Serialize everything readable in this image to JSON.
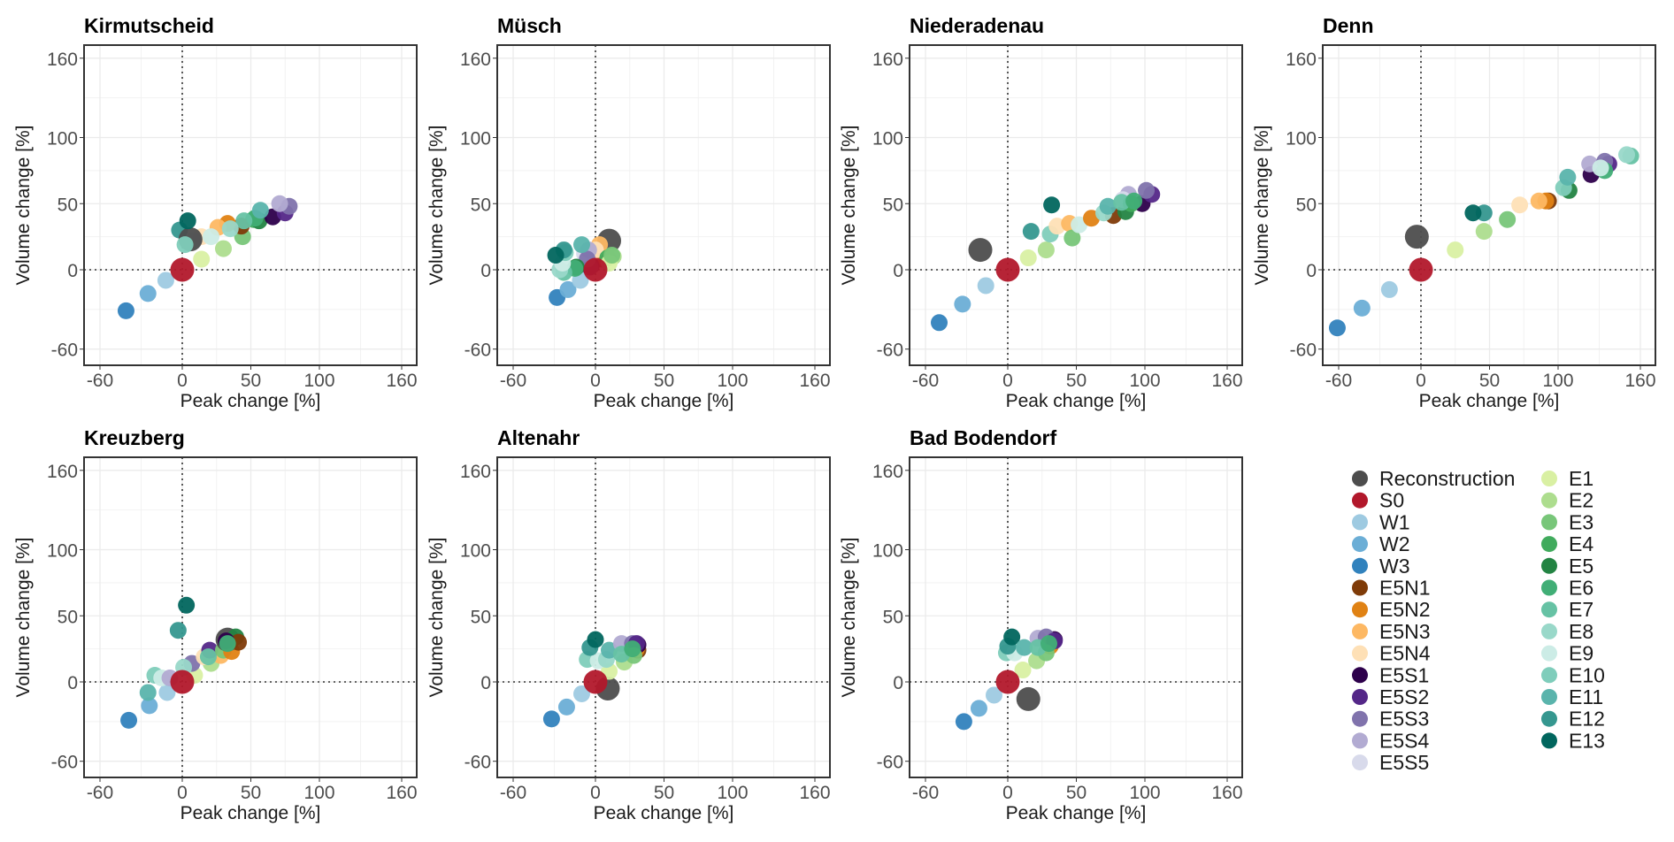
{
  "chart_data": {
    "type": "scatter",
    "xlabel": "Peak change [%]",
    "ylabel": "Volume change [%]",
    "xlim": [
      -68,
      175
    ],
    "ylim": [
      -70,
      170
    ],
    "xticks": [
      -60,
      0,
      50,
      100,
      160
    ],
    "yticks": [
      -60,
      0,
      50,
      100,
      160
    ],
    "tick_labels": [
      "-60",
      "0",
      "50",
      "100",
      "160"
    ],
    "grid": true,
    "reference_lines": {
      "x": 0,
      "y": 0,
      "style": "dotted"
    },
    "legend": {
      "placement": "bottom-right",
      "columns": 2,
      "entries": [
        {
          "name": "Reconstruction",
          "color": "#4d4d4d"
        },
        {
          "name": "S0",
          "color": "#b2182b"
        },
        {
          "name": "W1",
          "color": "#9ecae1"
        },
        {
          "name": "W2",
          "color": "#6baed6"
        },
        {
          "name": "W3",
          "color": "#3182bd"
        },
        {
          "name": "E5N1",
          "color": "#7f3b08"
        },
        {
          "name": "E5N2",
          "color": "#e08214"
        },
        {
          "name": "E5N3",
          "color": "#fdb863"
        },
        {
          "name": "E5N4",
          "color": "#fee0b6"
        },
        {
          "name": "E5S1",
          "color": "#2d004b"
        },
        {
          "name": "E5S2",
          "color": "#542788"
        },
        {
          "name": "E5S3",
          "color": "#8073ac"
        },
        {
          "name": "E5S4",
          "color": "#b2abd2"
        },
        {
          "name": "E5S5",
          "color": "#d8daeb"
        },
        {
          "name": "E1",
          "color": "#d9f0a3"
        },
        {
          "name": "E2",
          "color": "#addd8e"
        },
        {
          "name": "E3",
          "color": "#78c679"
        },
        {
          "name": "E4",
          "color": "#41ab5d"
        },
        {
          "name": "E5",
          "color": "#238443"
        },
        {
          "name": "E6",
          "color": "#41ae76"
        },
        {
          "name": "E7",
          "color": "#66c2a4"
        },
        {
          "name": "E8",
          "color": "#99d8c9"
        },
        {
          "name": "E9",
          "color": "#ccece6"
        },
        {
          "name": "E10",
          "color": "#7fcdbb"
        },
        {
          "name": "E11",
          "color": "#5ab4ac"
        },
        {
          "name": "E12",
          "color": "#35978f"
        },
        {
          "name": "E13",
          "color": "#01665e"
        }
      ]
    },
    "panels": [
      {
        "title": "Kirmutscheid",
        "points": [
          {
            "s": "W3",
            "x": -41,
            "y": -31
          },
          {
            "s": "W2",
            "x": -25,
            "y": -18
          },
          {
            "s": "W1",
            "x": -12,
            "y": -8
          },
          {
            "s": "E1",
            "x": 14,
            "y": 8
          },
          {
            "s": "E2",
            "x": 30,
            "y": 16
          },
          {
            "s": "E3",
            "x": 44,
            "y": 25
          },
          {
            "s": "E4",
            "x": 52,
            "y": 38
          },
          {
            "s": "E5",
            "x": 56,
            "y": 37
          },
          {
            "s": "E5N1",
            "x": 43,
            "y": 33
          },
          {
            "s": "E5N2",
            "x": 33,
            "y": 35
          },
          {
            "s": "E5N3",
            "x": 26,
            "y": 32
          },
          {
            "s": "E5N4",
            "x": 14,
            "y": 25
          },
          {
            "s": "E5S1",
            "x": 66,
            "y": 40
          },
          {
            "s": "E5S2",
            "x": 75,
            "y": 43
          },
          {
            "s": "E5S3",
            "x": 78,
            "y": 48
          },
          {
            "s": "E5S4",
            "x": 71,
            "y": 50
          },
          {
            "s": "E5S5",
            "x": 8,
            "y": 22
          },
          {
            "s": "E6",
            "x": 53,
            "y": 39
          },
          {
            "s": "E7",
            "x": 45,
            "y": 37
          },
          {
            "s": "E8",
            "x": 35,
            "y": 31
          },
          {
            "s": "E9",
            "x": 21,
            "y": 25
          },
          {
            "s": "E11",
            "x": 57,
            "y": 45
          },
          {
            "s": "E12",
            "x": -2,
            "y": 30
          },
          {
            "s": "Reconstruction",
            "x": 6,
            "y": 23
          },
          {
            "s": "E13",
            "x": 4,
            "y": 37
          },
          {
            "s": "E10",
            "x": 2,
            "y": 19
          },
          {
            "s": "S0",
            "x": 0,
            "y": 0
          }
        ]
      },
      {
        "title": "Müsch",
        "points": [
          {
            "s": "W3",
            "x": -28,
            "y": -21
          },
          {
            "s": "W2",
            "x": -20,
            "y": -15
          },
          {
            "s": "W1",
            "x": -11,
            "y": -8
          },
          {
            "s": "Reconstruction",
            "x": 10,
            "y": 22
          },
          {
            "s": "E5N1",
            "x": 5,
            "y": 8
          },
          {
            "s": "E5N2",
            "x": 4,
            "y": 10
          },
          {
            "s": "E5N3",
            "x": 3,
            "y": 19
          },
          {
            "s": "E5N4",
            "x": 0,
            "y": 15
          },
          {
            "s": "E5S1",
            "x": -3,
            "y": 3
          },
          {
            "s": "E5S2",
            "x": -4,
            "y": 2
          },
          {
            "s": "E5S5",
            "x": -8,
            "y": 12
          },
          {
            "s": "E5S4",
            "x": -5,
            "y": 15
          },
          {
            "s": "E5S3",
            "x": -6,
            "y": 8
          },
          {
            "s": "E4",
            "x": 9,
            "y": 9
          },
          {
            "s": "E5",
            "x": -14,
            "y": 2
          },
          {
            "s": "E6",
            "x": -15,
            "y": 1
          },
          {
            "s": "E7",
            "x": -23,
            "y": -2
          },
          {
            "s": "E8",
            "x": -26,
            "y": 0
          },
          {
            "s": "E9",
            "x": -24,
            "y": 5
          },
          {
            "s": "E10",
            "x": -22,
            "y": 13
          },
          {
            "s": "E11",
            "x": -10,
            "y": 19
          },
          {
            "s": "E12",
            "x": -23,
            "y": 15
          },
          {
            "s": "E13",
            "x": -29,
            "y": 11
          },
          {
            "s": "E2",
            "x": 13,
            "y": 10
          },
          {
            "s": "E1",
            "x": 10,
            "y": 5
          },
          {
            "s": "E3",
            "x": 12,
            "y": 11
          },
          {
            "s": "S0",
            "x": 0,
            "y": 0
          }
        ]
      },
      {
        "title": "Niederadenau",
        "points": [
          {
            "s": "Reconstruction",
            "x": -20,
            "y": 15
          },
          {
            "s": "W3",
            "x": -50,
            "y": -40
          },
          {
            "s": "W2",
            "x": -33,
            "y": -26
          },
          {
            "s": "W1",
            "x": -16,
            "y": -12
          },
          {
            "s": "E1",
            "x": 15,
            "y": 9
          },
          {
            "s": "E2",
            "x": 28,
            "y": 15
          },
          {
            "s": "E12",
            "x": 17,
            "y": 29
          },
          {
            "s": "E13",
            "x": 32,
            "y": 49
          },
          {
            "s": "E10",
            "x": 31,
            "y": 27
          },
          {
            "s": "E5N4",
            "x": 36,
            "y": 33
          },
          {
            "s": "E5N3",
            "x": 45,
            "y": 35
          },
          {
            "s": "E3",
            "x": 47,
            "y": 24
          },
          {
            "s": "E9",
            "x": 52,
            "y": 34
          },
          {
            "s": "E5N2",
            "x": 61,
            "y": 39
          },
          {
            "s": "E5N1",
            "x": 77,
            "y": 41
          },
          {
            "s": "E8",
            "x": 70,
            "y": 43
          },
          {
            "s": "E11",
            "x": 73,
            "y": 48
          },
          {
            "s": "E5",
            "x": 86,
            "y": 44
          },
          {
            "s": "E5S1",
            "x": 98,
            "y": 50
          },
          {
            "s": "E5S4",
            "x": 88,
            "y": 57
          },
          {
            "s": "E5S5",
            "x": 84,
            "y": 53
          },
          {
            "s": "E5S2",
            "x": 105,
            "y": 57
          },
          {
            "s": "E5S3",
            "x": 101,
            "y": 60
          },
          {
            "s": "E4",
            "x": 90,
            "y": 50
          },
          {
            "s": "E7",
            "x": 83,
            "y": 51
          },
          {
            "s": "E6",
            "x": 92,
            "y": 52
          },
          {
            "s": "S0",
            "x": 0,
            "y": 0
          }
        ]
      },
      {
        "title": "Denn",
        "points": [
          {
            "s": "Reconstruction",
            "x": -3,
            "y": 25
          },
          {
            "s": "W3",
            "x": -61,
            "y": -44
          },
          {
            "s": "W2",
            "x": -43,
            "y": -29
          },
          {
            "s": "W1",
            "x": -23,
            "y": -15
          },
          {
            "s": "E1",
            "x": 25,
            "y": 15
          },
          {
            "s": "E2",
            "x": 46,
            "y": 29
          },
          {
            "s": "E12",
            "x": 46,
            "y": 43
          },
          {
            "s": "E13",
            "x": 38,
            "y": 43
          },
          {
            "s": "E3",
            "x": 63,
            "y": 38
          },
          {
            "s": "E5N4",
            "x": 72,
            "y": 49
          },
          {
            "s": "E5N1",
            "x": 93,
            "y": 52
          },
          {
            "s": "E5N2",
            "x": 91,
            "y": 52
          },
          {
            "s": "E5N3",
            "x": 86,
            "y": 52
          },
          {
            "s": "E5",
            "x": 108,
            "y": 60
          },
          {
            "s": "E10",
            "x": 104,
            "y": 62
          },
          {
            "s": "E11",
            "x": 107,
            "y": 70
          },
          {
            "s": "E5S1",
            "x": 124,
            "y": 72
          },
          {
            "s": "E5S4",
            "x": 123,
            "y": 80
          },
          {
            "s": "E5S2",
            "x": 137,
            "y": 80
          },
          {
            "s": "E5S3",
            "x": 134,
            "y": 82
          },
          {
            "s": "E6",
            "x": 134,
            "y": 75
          },
          {
            "s": "E9",
            "x": 131,
            "y": 77
          },
          {
            "s": "E7",
            "x": 153,
            "y": 86
          },
          {
            "s": "E8",
            "x": 150,
            "y": 87
          },
          {
            "s": "S0",
            "x": 0,
            "y": 0
          }
        ]
      },
      {
        "title": "Kreuzberg",
        "points": [
          {
            "s": "W3",
            "x": -39,
            "y": -29
          },
          {
            "s": "W2",
            "x": -24,
            "y": -18
          },
          {
            "s": "E11",
            "x": -25,
            "y": -8
          },
          {
            "s": "W1",
            "x": -11,
            "y": -8
          },
          {
            "s": "E10",
            "x": -20,
            "y": 5
          },
          {
            "s": "E9",
            "x": -15,
            "y": 3
          },
          {
            "s": "E5S4",
            "x": -9,
            "y": 3
          },
          {
            "s": "E12",
            "x": -3,
            "y": 39
          },
          {
            "s": "E13",
            "x": 3,
            "y": 58
          },
          {
            "s": "E1",
            "x": 9,
            "y": 5
          },
          {
            "s": "E5S3",
            "x": 7,
            "y": 14
          },
          {
            "s": "E8",
            "x": 1,
            "y": 11
          },
          {
            "s": "E2",
            "x": 21,
            "y": 14
          },
          {
            "s": "E5N4",
            "x": 16,
            "y": 19
          },
          {
            "s": "E5N3",
            "x": 28,
            "y": 20
          },
          {
            "s": "E5S2",
            "x": 20,
            "y": 24
          },
          {
            "s": "E7",
            "x": 19,
            "y": 19
          },
          {
            "s": "E3",
            "x": 30,
            "y": 24
          },
          {
            "s": "E5N2",
            "x": 36,
            "y": 23
          },
          {
            "s": "Reconstruction",
            "x": 33,
            "y": 32
          },
          {
            "s": "E5",
            "x": 39,
            "y": 34
          },
          {
            "s": "E5N1",
            "x": 41,
            "y": 30
          },
          {
            "s": "E5S1",
            "x": 32,
            "y": 31
          },
          {
            "s": "E6",
            "x": 33,
            "y": 29
          },
          {
            "s": "S0",
            "x": 0,
            "y": 0
          }
        ]
      },
      {
        "title": "Altenahr",
        "points": [
          {
            "s": "W3",
            "x": -32,
            "y": -28
          },
          {
            "s": "W2",
            "x": -21,
            "y": -19
          },
          {
            "s": "W1",
            "x": -10,
            "y": -9
          },
          {
            "s": "Reconstruction",
            "x": 9,
            "y": -5
          },
          {
            "s": "E1",
            "x": 10,
            "y": 8
          },
          {
            "s": "E2",
            "x": 21,
            "y": 15
          },
          {
            "s": "E10",
            "x": -6,
            "y": 17
          },
          {
            "s": "E9",
            "x": 2,
            "y": 16
          },
          {
            "s": "E8",
            "x": 8,
            "y": 17
          },
          {
            "s": "E12",
            "x": -4,
            "y": 26
          },
          {
            "s": "E13",
            "x": 0,
            "y": 32
          },
          {
            "s": "E11",
            "x": 10,
            "y": 24
          },
          {
            "s": "E5N1",
            "x": 31,
            "y": 24
          },
          {
            "s": "E5N2",
            "x": 30,
            "y": 25
          },
          {
            "s": "E5S1",
            "x": 31,
            "y": 28
          },
          {
            "s": "E5S4",
            "x": 19,
            "y": 29
          },
          {
            "s": "E5S3",
            "x": 27,
            "y": 29
          },
          {
            "s": "E5S2",
            "x": 30,
            "y": 29
          },
          {
            "s": "E3",
            "x": 28,
            "y": 20
          },
          {
            "s": "E7",
            "x": 19,
            "y": 21
          },
          {
            "s": "E6",
            "x": 27,
            "y": 25
          },
          {
            "s": "S0",
            "x": 0,
            "y": 0
          }
        ]
      },
      {
        "title": "Bad Bodendorf",
        "points": [
          {
            "s": "Reconstruction",
            "x": 15,
            "y": -13
          },
          {
            "s": "W3",
            "x": -32,
            "y": -30
          },
          {
            "s": "W2",
            "x": -21,
            "y": -20
          },
          {
            "s": "W1",
            "x": -10,
            "y": -10
          },
          {
            "s": "E1",
            "x": 11,
            "y": 9
          },
          {
            "s": "E2",
            "x": 21,
            "y": 16
          },
          {
            "s": "E10",
            "x": -1,
            "y": 22
          },
          {
            "s": "E9",
            "x": 5,
            "y": 22
          },
          {
            "s": "E12",
            "x": 0,
            "y": 27
          },
          {
            "s": "E13",
            "x": 3,
            "y": 34
          },
          {
            "s": "E11",
            "x": 12,
            "y": 26
          },
          {
            "s": "E5N2",
            "x": 31,
            "y": 27
          },
          {
            "s": "E5S1",
            "x": 34,
            "y": 32
          },
          {
            "s": "E5S4",
            "x": 22,
            "y": 33
          },
          {
            "s": "E5S3",
            "x": 28,
            "y": 34
          },
          {
            "s": "E5S2",
            "x": 34,
            "y": 31
          },
          {
            "s": "E3",
            "x": 28,
            "y": 22
          },
          {
            "s": "E7",
            "x": 22,
            "y": 26
          },
          {
            "s": "E6",
            "x": 30,
            "y": 29
          },
          {
            "s": "S0",
            "x": 0,
            "y": 0
          }
        ]
      }
    ]
  }
}
